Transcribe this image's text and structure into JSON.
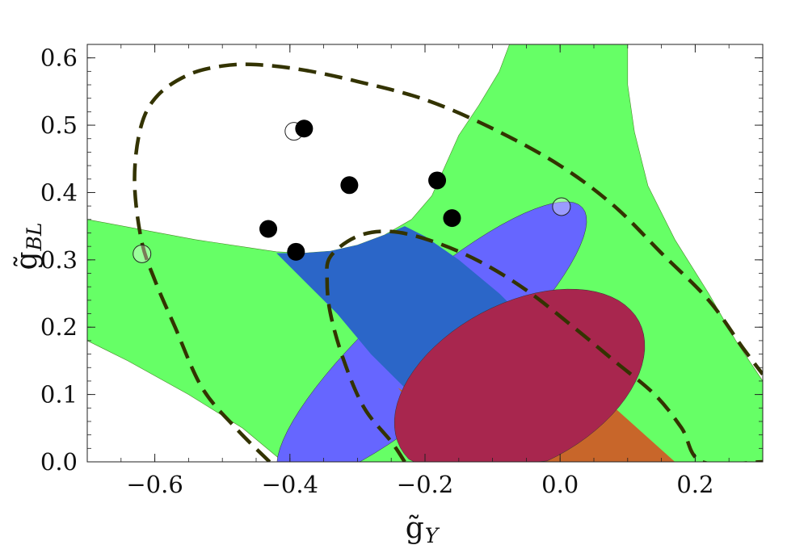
{
  "chart_data": {
    "type": "scatter",
    "title": "",
    "xlabel": {
      "base": "g̃",
      "sub": "Y"
    },
    "ylabel": {
      "base": "g̃",
      "sub": "BL"
    },
    "xlim": [
      -0.7,
      0.3
    ],
    "ylim": [
      0.0,
      0.62
    ],
    "grid": false,
    "x_ticks": [
      -0.6,
      -0.4,
      -0.2,
      0.0,
      0.2
    ],
    "x_tick_labels": [
      "−0.6",
      "−0.4",
      "−0.2",
      "0.0",
      "0.2"
    ],
    "y_ticks": [
      0.0,
      0.1,
      0.2,
      0.3,
      0.4,
      0.5,
      0.6
    ],
    "y_tick_labels": [
      "0.0",
      "0.1",
      "0.2",
      "0.3",
      "0.4",
      "0.5",
      "0.6"
    ],
    "colors": {
      "green_region": "#66ff66",
      "blue_region": "#6666ff",
      "darkblue_region": "#2b66c8",
      "crimson_region": "#a8264e",
      "orange_region": "#c8662a",
      "dashed_contour": "#333300",
      "filled_point": "#000000"
    },
    "regions": [
      {
        "id": "green",
        "polygons": [
          [
            [
              -0.7,
              0.36
            ],
            [
              -0.62,
              0.345
            ],
            [
              -0.54,
              0.33
            ],
            [
              -0.46,
              0.318
            ],
            [
              -0.42,
              0.312
            ],
            [
              -0.38,
              0.31
            ],
            [
              -0.34,
              0.313
            ],
            [
              -0.3,
              0.322
            ],
            [
              -0.26,
              0.337
            ],
            [
              -0.22,
              0.36
            ],
            [
              -0.19,
              0.395
            ],
            [
              -0.17,
              0.44
            ],
            [
              -0.15,
              0.485
            ],
            [
              -0.12,
              0.53
            ],
            [
              -0.09,
              0.58
            ],
            [
              -0.075,
              0.62
            ],
            [
              0.1,
              0.62
            ],
            [
              0.1,
              0.56
            ],
            [
              0.11,
              0.49
            ],
            [
              0.13,
              0.41
            ],
            [
              0.17,
              0.33
            ],
            [
              0.22,
              0.25
            ],
            [
              0.26,
              0.18
            ],
            [
              0.3,
              0.12
            ],
            [
              0.3,
              0.0
            ],
            [
              -0.41,
              0.0
            ],
            [
              -0.47,
              0.05
            ],
            [
              -0.55,
              0.1
            ],
            [
              -0.64,
              0.15
            ],
            [
              -0.7,
              0.18
            ]
          ]
        ]
      },
      {
        "id": "blue",
        "ellipse": {
          "cx": -0.19,
          "cy": 0.177,
          "rx": 0.3,
          "ry": 0.08,
          "angle_deg": 42
        }
      },
      {
        "id": "darkblue",
        "polygon": [
          [
            -0.42,
            0.31
          ],
          [
            -0.38,
            0.31
          ],
          [
            -0.34,
            0.313
          ],
          [
            -0.3,
            0.322
          ],
          [
            -0.26,
            0.337
          ],
          [
            -0.23,
            0.35
          ],
          [
            -0.2,
            0.335
          ],
          [
            -0.15,
            0.3
          ],
          [
            -0.09,
            0.25
          ],
          [
            -0.04,
            0.2
          ],
          [
            0.0,
            0.145
          ],
          [
            -0.07,
            0.09
          ],
          [
            -0.14,
            0.05
          ],
          [
            -0.2,
            0.02
          ],
          [
            -0.23,
            0.11
          ],
          [
            -0.28,
            0.16
          ],
          [
            -0.33,
            0.22
          ],
          [
            -0.38,
            0.27
          ]
        ]
      },
      {
        "id": "orange",
        "polygon": [
          [
            -0.24,
            0.11
          ],
          [
            -0.2,
            0.06
          ],
          [
            -0.17,
            0.03
          ],
          [
            -0.13,
            0.0
          ],
          [
            0.17,
            0.0
          ],
          [
            0.12,
            0.045
          ],
          [
            0.07,
            0.09
          ],
          [
            0.01,
            0.14
          ],
          [
            -0.06,
            0.09
          ],
          [
            -0.14,
            0.05
          ]
        ]
      },
      {
        "id": "crimson",
        "ellipse": {
          "cx": -0.06,
          "cy": 0.115,
          "rx": 0.2,
          "ry": 0.12,
          "angle_deg": 28
        },
        "clip_ymin": 0.0
      }
    ],
    "dashed_contours": [
      [
        [
          -0.43,
          0.0
        ],
        [
          -0.48,
          0.05
        ],
        [
          -0.53,
          0.11
        ],
        [
          -0.57,
          0.2
        ],
        [
          -0.6,
          0.27
        ],
        [
          -0.62,
          0.33
        ],
        [
          -0.63,
          0.42
        ],
        [
          -0.62,
          0.5
        ],
        [
          -0.595,
          0.545
        ],
        [
          -0.55,
          0.575
        ],
        [
          -0.5,
          0.588
        ],
        [
          -0.45,
          0.59
        ],
        [
          -0.38,
          0.582
        ],
        [
          -0.3,
          0.565
        ],
        [
          -0.2,
          0.538
        ],
        [
          -0.1,
          0.495
        ],
        [
          0.0,
          0.44
        ],
        [
          0.08,
          0.38
        ],
        [
          0.15,
          0.31
        ],
        [
          0.22,
          0.24
        ],
        [
          0.27,
          0.17
        ],
        [
          0.3,
          0.13
        ]
      ],
      [
        [
          -0.23,
          0.0
        ],
        [
          -0.25,
          0.03
        ],
        [
          -0.29,
          0.08
        ],
        [
          -0.32,
          0.15
        ],
        [
          -0.34,
          0.22
        ],
        [
          -0.345,
          0.27
        ],
        [
          -0.34,
          0.305
        ],
        [
          -0.3,
          0.335
        ],
        [
          -0.25,
          0.342
        ],
        [
          -0.19,
          0.328
        ],
        [
          -0.12,
          0.298
        ],
        [
          -0.05,
          0.255
        ],
        [
          0.02,
          0.2
        ],
        [
          0.08,
          0.15
        ],
        [
          0.14,
          0.1
        ],
        [
          0.18,
          0.05
        ],
        [
          0.21,
          0.0
        ],
        [
          0.3,
          0.0
        ]
      ]
    ],
    "filled_points": [
      [
        -0.379,
        0.495
      ],
      [
        -0.312,
        0.411
      ],
      [
        -0.182,
        0.418
      ],
      [
        -0.16,
        0.362
      ],
      [
        -0.432,
        0.346
      ],
      [
        -0.391,
        0.312
      ]
    ],
    "open_points": [
      [
        -0.394,
        0.491
      ],
      [
        -0.619,
        0.309
      ],
      [
        0.002,
        0.379
      ]
    ]
  }
}
